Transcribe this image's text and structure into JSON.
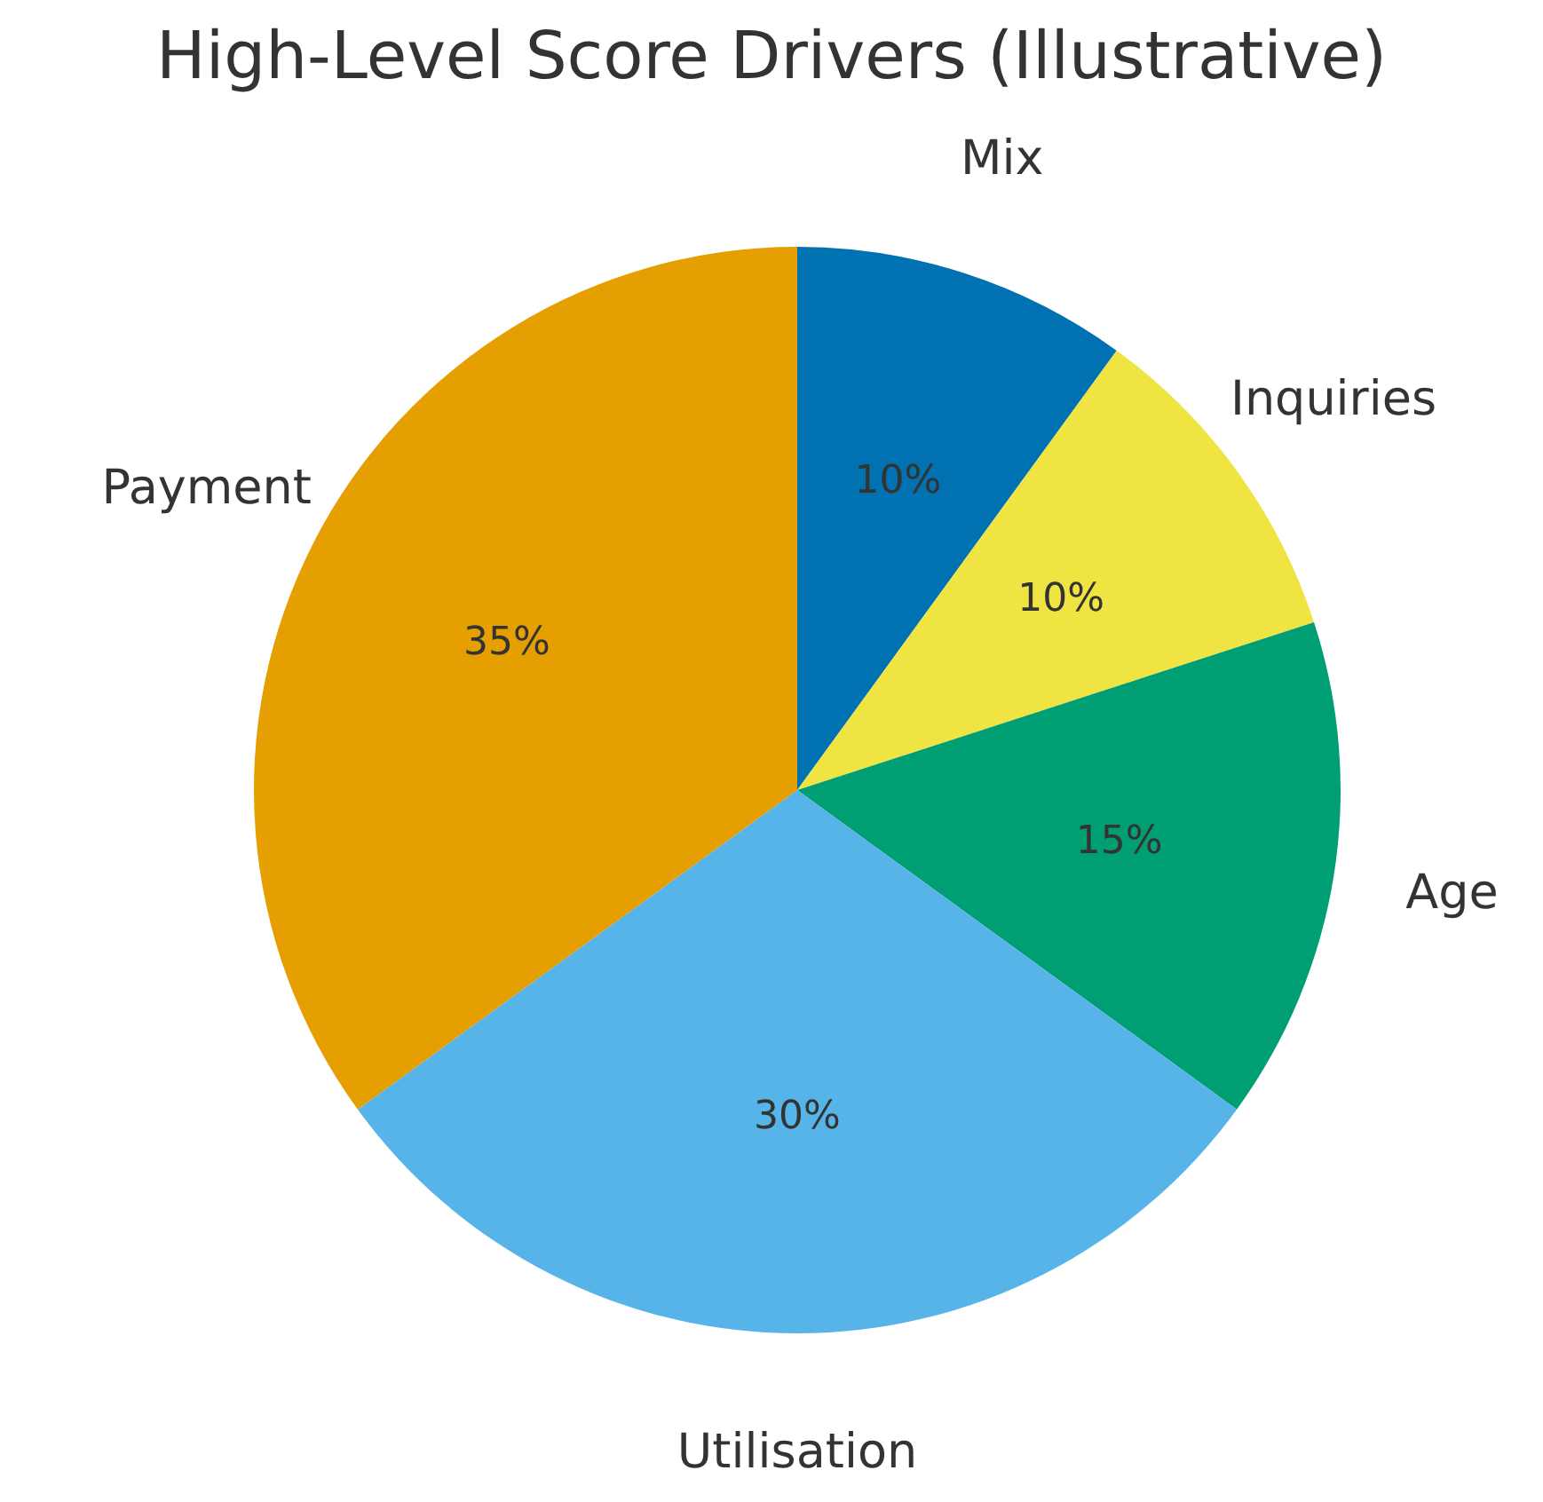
{
  "chart_data": {
    "type": "pie",
    "title": "High-Level Score Drivers (Illustrative)",
    "categories": [
      "Mix",
      "Inquiries",
      "Age",
      "Utilisation",
      "Payment"
    ],
    "values": [
      10,
      10,
      15,
      30,
      35
    ],
    "colors": [
      "#0072b2",
      "#f0e442",
      "#009e73",
      "#56b4e9",
      "#e69f00"
    ],
    "value_labels": [
      "10%",
      "10%",
      "15%",
      "30%",
      "35%"
    ]
  }
}
